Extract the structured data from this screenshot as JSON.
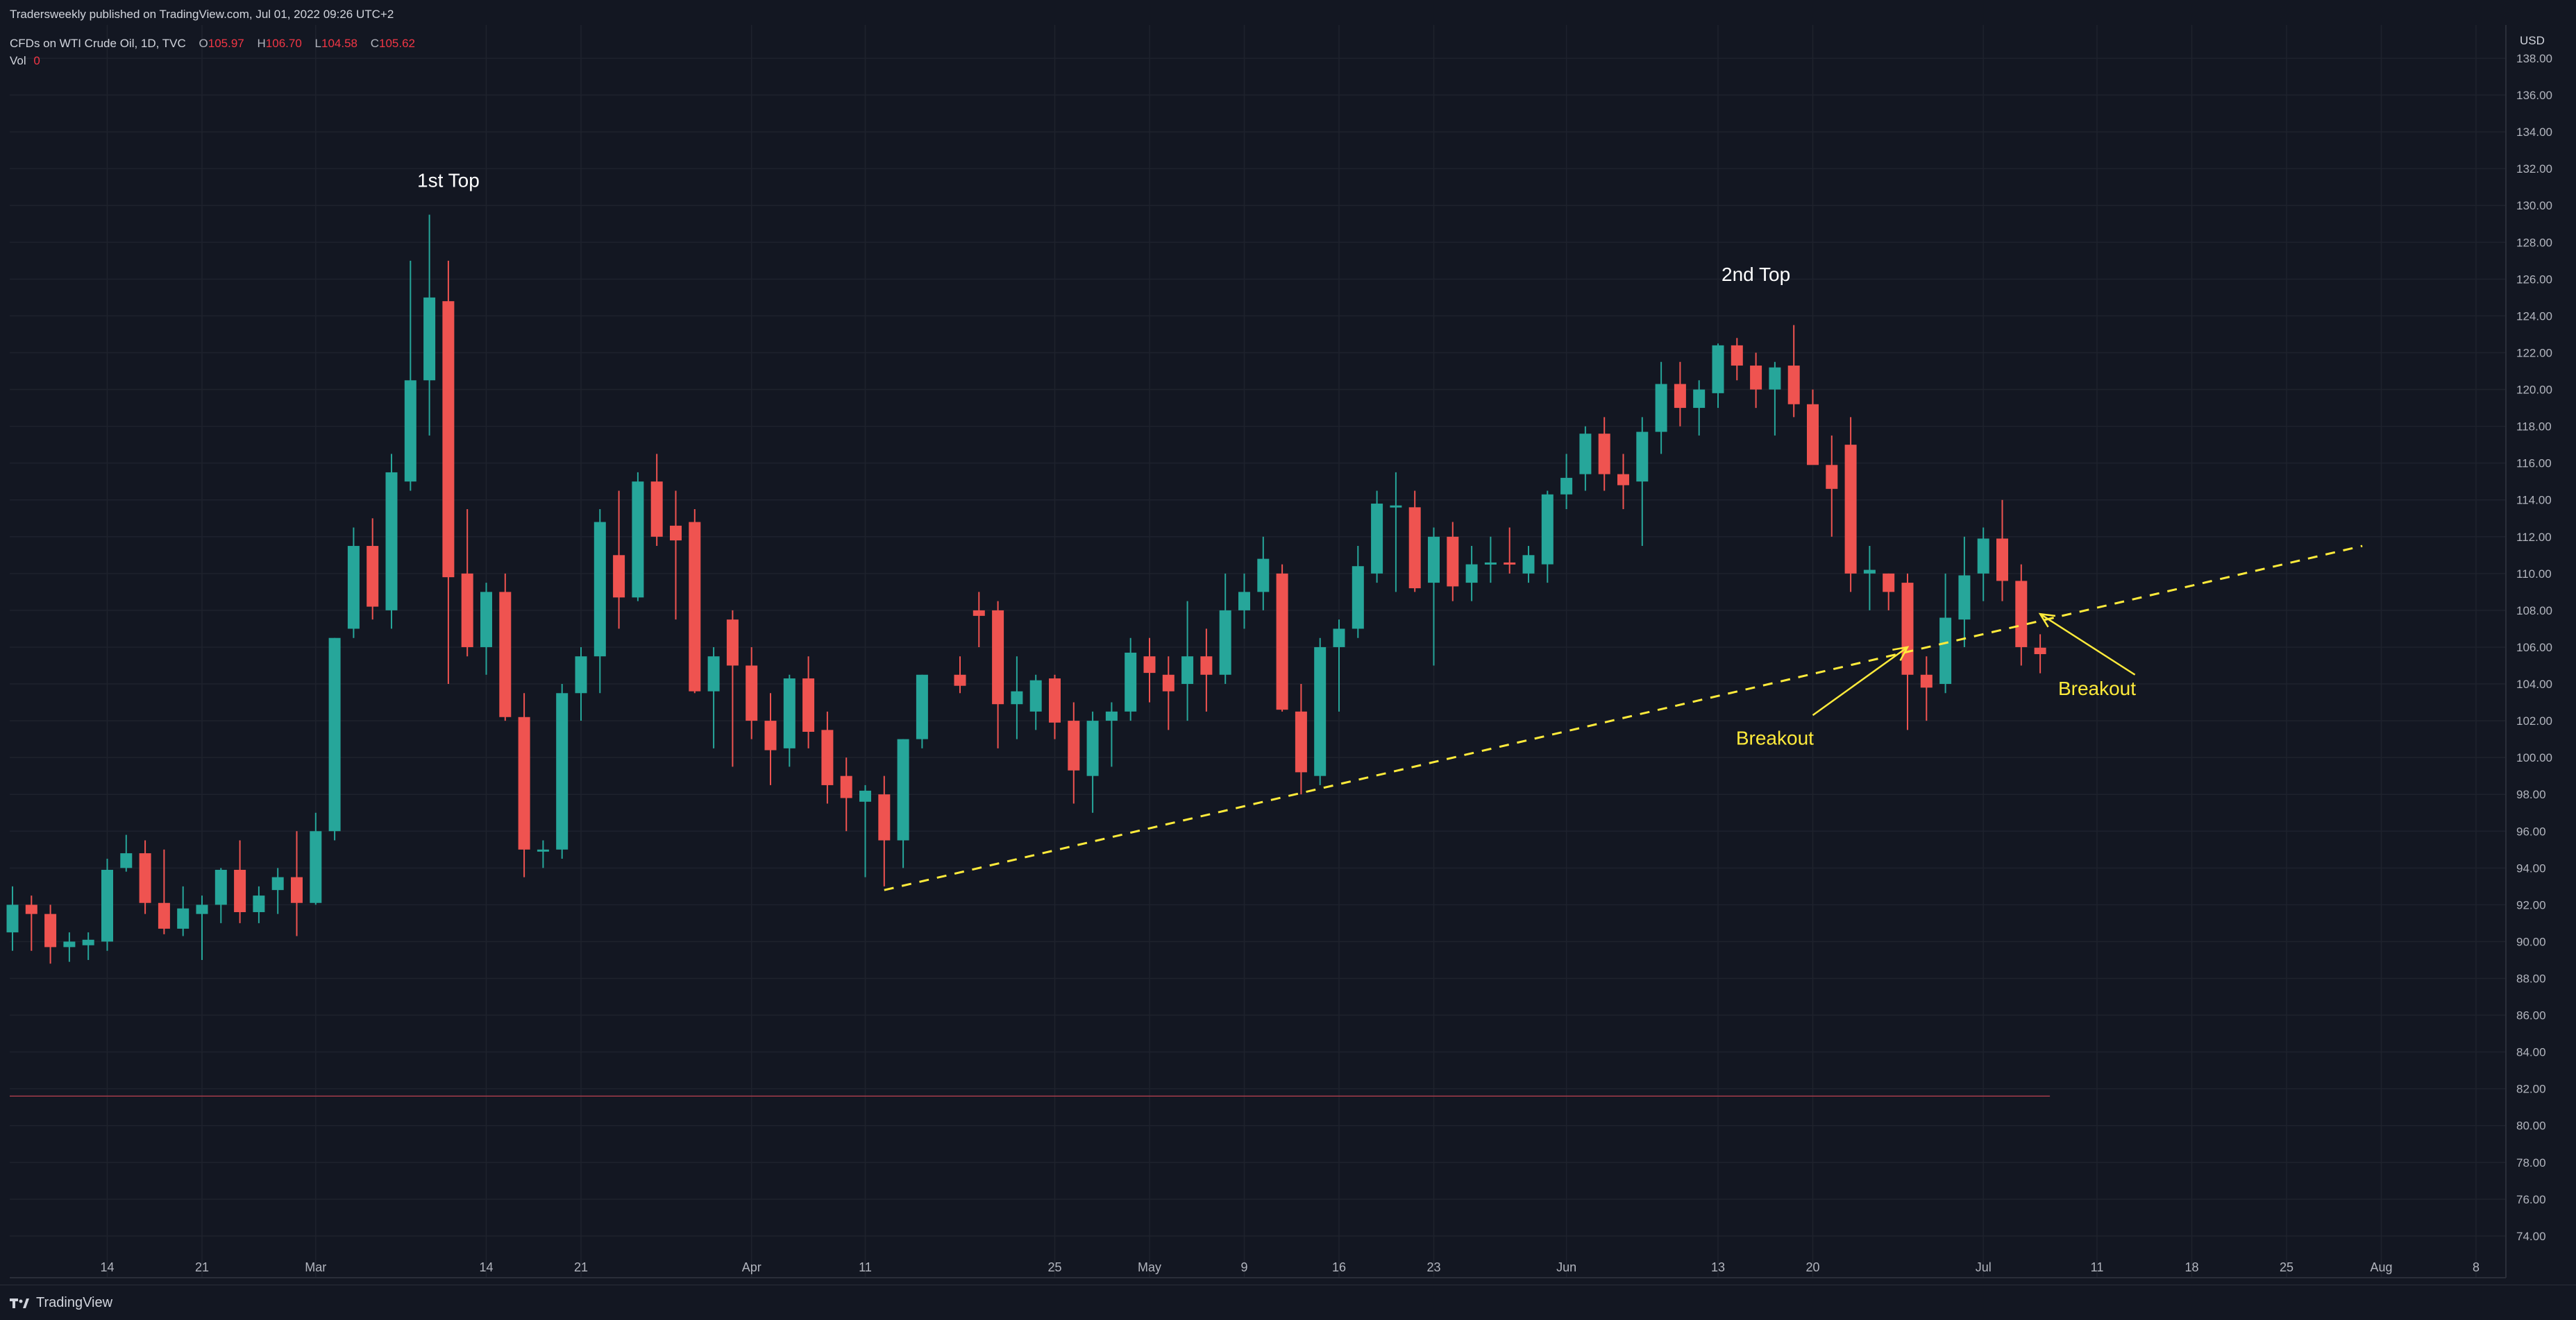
{
  "header": {
    "published": "Tradersweekly published on TradingView.com, Jul 01, 2022 09:26 UTC+2",
    "symbol": "CFDs on WTI Crude Oil, 1D, TVC",
    "ohlc": [
      {
        "k": "O",
        "v": "105.97"
      },
      {
        "k": "H",
        "v": "106.70"
      },
      {
        "k": "L",
        "v": "104.58"
      },
      {
        "k": "C",
        "v": "105.62"
      }
    ],
    "vol_label": "Vol",
    "vol_value": "0"
  },
  "footer": {
    "brand": "TradingView"
  },
  "colors": {
    "background": "#131722",
    "up": "#26a69a",
    "down": "#ef5350",
    "grid": "#1e222d",
    "axis_text": "#b2b5be",
    "trendline": "#ffeb3b",
    "annotation": "#ffeb3b"
  },
  "chart_data": {
    "type": "candlestick",
    "currency": "USD",
    "ylim": [
      73,
      139
    ],
    "y_ticks": [
      74,
      76,
      78,
      80,
      82,
      84,
      86,
      88,
      90,
      92,
      94,
      96,
      98,
      100,
      102,
      104,
      106,
      108,
      110,
      112,
      114,
      116,
      118,
      120,
      122,
      124,
      126,
      128,
      130,
      132,
      134,
      136,
      138
    ],
    "y_tick_labels": [
      "74.00",
      "76.00",
      "78.00",
      "80.00",
      "82.00",
      "84.00",
      "86.00",
      "88.00",
      "90.00",
      "92.00",
      "94.00",
      "96.00",
      "98.00",
      "100.00",
      "102.00",
      "104.00",
      "106.00",
      "108.00",
      "110.00",
      "112.00",
      "114.00",
      "116.00",
      "118.00",
      "120.00",
      "122.00",
      "124.00",
      "126.00",
      "128.00",
      "130.00",
      "132.00",
      "134.00",
      "136.00",
      "138.00"
    ],
    "x_ticks": [
      {
        "date": "2022-02-14",
        "label": "14"
      },
      {
        "date": "2022-02-21",
        "label": "21"
      },
      {
        "date": "2022-03-01",
        "label": "Mar"
      },
      {
        "date": "2022-03-14",
        "label": "14"
      },
      {
        "date": "2022-03-21",
        "label": "21"
      },
      {
        "date": "2022-04-01",
        "label": "Apr"
      },
      {
        "date": "2022-04-11",
        "label": "11"
      },
      {
        "date": "2022-04-25",
        "label": "25"
      },
      {
        "date": "2022-05-02",
        "label": "May"
      },
      {
        "date": "2022-05-09",
        "label": "9"
      },
      {
        "date": "2022-05-16",
        "label": "16"
      },
      {
        "date": "2022-05-23",
        "label": "23"
      },
      {
        "date": "2022-06-01",
        "label": "Jun"
      },
      {
        "date": "2022-06-13",
        "label": "13"
      },
      {
        "date": "2022-06-20",
        "label": "20"
      },
      {
        "date": "2022-07-01",
        "label": "Jul"
      },
      {
        "date": "2022-07-11",
        "label": "11"
      },
      {
        "date": "2022-07-18",
        "label": "18"
      },
      {
        "date": "2022-07-25",
        "label": "25"
      },
      {
        "date": "2022-08-01",
        "label": "Aug"
      },
      {
        "date": "2022-08-08",
        "label": "8"
      }
    ],
    "candles": [
      {
        "date": "2022-02-07",
        "o": 90.5,
        "h": 93.0,
        "l": 89.5,
        "c": 92.0
      },
      {
        "date": "2022-02-08",
        "o": 92.0,
        "h": 92.5,
        "l": 89.5,
        "c": 91.5
      },
      {
        "date": "2022-02-09",
        "o": 91.5,
        "h": 92.0,
        "l": 88.8,
        "c": 89.7
      },
      {
        "date": "2022-02-10",
        "o": 89.7,
        "h": 90.5,
        "l": 88.9,
        "c": 90.0
      },
      {
        "date": "2022-02-11",
        "o": 89.8,
        "h": 90.5,
        "l": 89.0,
        "c": 90.1
      },
      {
        "date": "2022-02-14",
        "o": 90.0,
        "h": 94.5,
        "l": 89.5,
        "c": 93.9
      },
      {
        "date": "2022-02-15",
        "o": 94.0,
        "h": 95.8,
        "l": 93.8,
        "c": 94.8
      },
      {
        "date": "2022-02-16",
        "o": 94.8,
        "h": 95.5,
        "l": 91.5,
        "c": 92.1
      },
      {
        "date": "2022-02-17",
        "o": 92.1,
        "h": 95.0,
        "l": 90.4,
        "c": 90.7
      },
      {
        "date": "2022-02-18",
        "o": 90.7,
        "h": 93.0,
        "l": 90.3,
        "c": 91.8
      },
      {
        "date": "2022-02-21",
        "o": 91.5,
        "h": 92.5,
        "l": 89.0,
        "c": 92.0
      },
      {
        "date": "2022-02-22",
        "o": 92.0,
        "h": 94.0,
        "l": 91.0,
        "c": 93.9
      },
      {
        "date": "2022-02-23",
        "o": 93.9,
        "h": 95.5,
        "l": 91.0,
        "c": 91.6
      },
      {
        "date": "2022-02-24",
        "o": 91.6,
        "h": 93.0,
        "l": 91.0,
        "c": 92.5
      },
      {
        "date": "2022-02-25",
        "o": 92.8,
        "h": 94.0,
        "l": 91.5,
        "c": 93.5
      },
      {
        "date": "2022-02-28",
        "o": 93.5,
        "h": 96.0,
        "l": 90.3,
        "c": 92.1
      },
      {
        "date": "2022-03-01",
        "o": 92.1,
        "h": 97.0,
        "l": 92.0,
        "c": 96.0
      },
      {
        "date": "2022-03-02",
        "o": 96.0,
        "h": 106.5,
        "l": 95.5,
        "c": 106.5
      },
      {
        "date": "2022-03-03",
        "o": 107.0,
        "h": 112.5,
        "l": 106.5,
        "c": 111.5
      },
      {
        "date": "2022-03-04",
        "o": 111.5,
        "h": 113.0,
        "l": 107.5,
        "c": 108.2
      },
      {
        "date": "2022-03-07",
        "o": 108.0,
        "h": 116.5,
        "l": 107.0,
        "c": 115.5
      },
      {
        "date": "2022-03-08",
        "o": 115.0,
        "h": 127.0,
        "l": 114.5,
        "c": 120.5
      },
      {
        "date": "2022-03-09",
        "o": 120.5,
        "h": 129.5,
        "l": 117.5,
        "c": 125.0
      },
      {
        "date": "2022-03-10",
        "o": 124.8,
        "h": 127.0,
        "l": 104.0,
        "c": 109.8
      },
      {
        "date": "2022-03-11",
        "o": 110.0,
        "h": 113.5,
        "l": 105.5,
        "c": 106.0
      },
      {
        "date": "2022-03-14",
        "o": 106.0,
        "h": 109.5,
        "l": 104.5,
        "c": 109.0
      },
      {
        "date": "2022-03-15",
        "o": 109.0,
        "h": 110.0,
        "l": 102.0,
        "c": 102.2
      },
      {
        "date": "2022-03-16",
        "o": 102.2,
        "h": 103.5,
        "l": 93.5,
        "c": 95.0
      },
      {
        "date": "2022-03-17",
        "o": 95.0,
        "h": 95.5,
        "l": 94.0,
        "c": 95.0
      },
      {
        "date": "2022-03-18",
        "o": 95.0,
        "h": 104.0,
        "l": 94.5,
        "c": 103.5
      },
      {
        "date": "2022-03-21",
        "o": 103.5,
        "h": 106.0,
        "l": 102.0,
        "c": 105.5
      },
      {
        "date": "2022-03-22",
        "o": 105.5,
        "h": 113.5,
        "l": 103.5,
        "c": 112.8
      },
      {
        "date": "2022-03-23",
        "o": 111.0,
        "h": 114.5,
        "l": 107.0,
        "c": 108.7
      },
      {
        "date": "2022-03-24",
        "o": 108.7,
        "h": 115.5,
        "l": 108.5,
        "c": 115.0
      },
      {
        "date": "2022-03-25",
        "o": 115.0,
        "h": 116.5,
        "l": 111.5,
        "c": 112.0
      },
      {
        "date": "2022-03-28",
        "o": 112.6,
        "h": 114.5,
        "l": 107.5,
        "c": 111.8
      },
      {
        "date": "2022-03-29",
        "o": 112.8,
        "h": 113.5,
        "l": 103.5,
        "c": 103.6
      },
      {
        "date": "2022-03-30",
        "o": 103.6,
        "h": 106.0,
        "l": 100.5,
        "c": 105.5
      },
      {
        "date": "2022-03-31",
        "o": 107.5,
        "h": 108.0,
        "l": 99.5,
        "c": 105.0
      },
      {
        "date": "2022-04-01",
        "o": 105.0,
        "h": 106.0,
        "l": 101.0,
        "c": 102.0
      },
      {
        "date": "2022-04-04",
        "o": 102.0,
        "h": 103.5,
        "l": 98.5,
        "c": 100.4
      },
      {
        "date": "2022-04-05",
        "o": 100.5,
        "h": 104.5,
        "l": 99.5,
        "c": 104.3
      },
      {
        "date": "2022-04-06",
        "o": 104.3,
        "h": 105.5,
        "l": 100.5,
        "c": 101.4
      },
      {
        "date": "2022-04-07",
        "o": 101.5,
        "h": 102.5,
        "l": 97.5,
        "c": 98.5
      },
      {
        "date": "2022-04-08",
        "o": 99.0,
        "h": 100.0,
        "l": 96.0,
        "c": 97.8
      },
      {
        "date": "2022-04-11",
        "o": 97.6,
        "h": 98.5,
        "l": 93.5,
        "c": 98.2
      },
      {
        "date": "2022-04-12",
        "o": 98.0,
        "h": 99.0,
        "l": 93.0,
        "c": 95.5
      },
      {
        "date": "2022-04-13",
        "o": 95.5,
        "h": 101.0,
        "l": 94.0,
        "c": 101.0
      },
      {
        "date": "2022-04-14",
        "o": 101.0,
        "h": 104.5,
        "l": 100.5,
        "c": 104.5
      },
      {
        "date": "2022-04-18",
        "o": 104.5,
        "h": 105.5,
        "l": 103.5,
        "c": 103.9
      },
      {
        "date": "2022-04-19",
        "o": 108.0,
        "h": 109.0,
        "l": 106.0,
        "c": 107.7
      },
      {
        "date": "2022-04-20",
        "o": 108.0,
        "h": 108.5,
        "l": 100.5,
        "c": 102.9
      },
      {
        "date": "2022-04-21",
        "o": 102.9,
        "h": 105.5,
        "l": 101.0,
        "c": 103.6
      },
      {
        "date": "2022-04-22",
        "o": 102.5,
        "h": 104.5,
        "l": 101.5,
        "c": 104.2
      },
      {
        "date": "2022-04-25",
        "o": 104.3,
        "h": 104.5,
        "l": 101.0,
        "c": 101.9
      },
      {
        "date": "2022-04-26",
        "o": 102.0,
        "h": 103.0,
        "l": 97.5,
        "c": 99.3
      },
      {
        "date": "2022-04-27",
        "o": 99.0,
        "h": 102.5,
        "l": 97.0,
        "c": 102.0
      },
      {
        "date": "2022-04-28",
        "o": 102.0,
        "h": 103.0,
        "l": 99.5,
        "c": 102.5
      },
      {
        "date": "2022-04-29",
        "o": 102.5,
        "h": 106.5,
        "l": 102.0,
        "c": 105.7
      },
      {
        "date": "2022-05-02",
        "o": 105.5,
        "h": 106.5,
        "l": 103.0,
        "c": 104.6
      },
      {
        "date": "2022-05-03",
        "o": 104.5,
        "h": 105.5,
        "l": 101.5,
        "c": 103.6
      },
      {
        "date": "2022-05-04",
        "o": 104.0,
        "h": 108.5,
        "l": 102.0,
        "c": 105.5
      },
      {
        "date": "2022-05-05",
        "o": 105.5,
        "h": 107.0,
        "l": 102.5,
        "c": 104.5
      },
      {
        "date": "2022-05-06",
        "o": 104.5,
        "h": 110.0,
        "l": 104.0,
        "c": 108.0
      },
      {
        "date": "2022-05-09",
        "o": 108.0,
        "h": 110.0,
        "l": 107.0,
        "c": 109.0
      },
      {
        "date": "2022-05-10",
        "o": 109.0,
        "h": 112.0,
        "l": 108.0,
        "c": 110.8
      },
      {
        "date": "2022-05-11",
        "o": 110.0,
        "h": 110.5,
        "l": 102.5,
        "c": 102.6
      },
      {
        "date": "2022-05-12",
        "o": 102.5,
        "h": 104.0,
        "l": 98.0,
        "c": 99.2
      },
      {
        "date": "2022-05-13",
        "o": 99.0,
        "h": 106.5,
        "l": 98.5,
        "c": 106.0
      },
      {
        "date": "2022-05-16",
        "o": 106.0,
        "h": 107.5,
        "l": 102.5,
        "c": 107.0
      },
      {
        "date": "2022-05-17",
        "o": 107.0,
        "h": 111.5,
        "l": 106.5,
        "c": 110.4
      },
      {
        "date": "2022-05-18",
        "o": 110.0,
        "h": 114.5,
        "l": 109.5,
        "c": 113.8
      },
      {
        "date": "2022-05-19",
        "o": 113.6,
        "h": 115.5,
        "l": 109.0,
        "c": 113.7
      },
      {
        "date": "2022-05-20",
        "o": 113.6,
        "h": 114.5,
        "l": 109.0,
        "c": 109.2
      },
      {
        "date": "2022-05-23",
        "o": 109.5,
        "h": 112.5,
        "l": 105.0,
        "c": 112.0
      },
      {
        "date": "2022-05-24",
        "o": 112.0,
        "h": 112.8,
        "l": 108.5,
        "c": 109.3
      },
      {
        "date": "2022-05-25",
        "o": 109.5,
        "h": 111.5,
        "l": 108.5,
        "c": 110.5
      },
      {
        "date": "2022-05-26",
        "o": 110.5,
        "h": 112.0,
        "l": 109.5,
        "c": 110.6
      },
      {
        "date": "2022-05-27",
        "o": 110.6,
        "h": 112.5,
        "l": 110.0,
        "c": 110.5
      },
      {
        "date": "2022-05-30",
        "o": 110.0,
        "h": 111.5,
        "l": 109.5,
        "c": 111.0
      },
      {
        "date": "2022-05-31",
        "o": 110.5,
        "h": 114.5,
        "l": 109.5,
        "c": 114.3
      },
      {
        "date": "2022-06-01",
        "o": 114.3,
        "h": 116.5,
        "l": 113.5,
        "c": 115.2
      },
      {
        "date": "2022-06-02",
        "o": 115.4,
        "h": 118.0,
        "l": 114.5,
        "c": 117.6
      },
      {
        "date": "2022-06-03",
        "o": 117.6,
        "h": 118.5,
        "l": 114.5,
        "c": 115.4
      },
      {
        "date": "2022-06-06",
        "o": 115.4,
        "h": 116.5,
        "l": 113.5,
        "c": 114.8
      },
      {
        "date": "2022-06-07",
        "o": 115.0,
        "h": 118.5,
        "l": 111.5,
        "c": 117.7
      },
      {
        "date": "2022-06-08",
        "o": 117.7,
        "h": 121.5,
        "l": 116.5,
        "c": 120.3
      },
      {
        "date": "2022-06-09",
        "o": 120.3,
        "h": 121.5,
        "l": 118.0,
        "c": 119.0
      },
      {
        "date": "2022-06-10",
        "o": 119.0,
        "h": 120.5,
        "l": 117.5,
        "c": 120.0
      },
      {
        "date": "2022-06-13",
        "o": 119.8,
        "h": 122.5,
        "l": 119.0,
        "c": 122.4
      },
      {
        "date": "2022-06-14",
        "o": 122.4,
        "h": 122.8,
        "l": 120.5,
        "c": 121.3
      },
      {
        "date": "2022-06-15",
        "o": 121.3,
        "h": 122.0,
        "l": 119.0,
        "c": 120.0
      },
      {
        "date": "2022-06-16",
        "o": 120.0,
        "h": 121.5,
        "l": 117.5,
        "c": 121.2
      },
      {
        "date": "2022-06-17",
        "o": 121.3,
        "h": 123.5,
        "l": 118.5,
        "c": 119.2
      },
      {
        "date": "2022-06-20",
        "o": 119.2,
        "h": 120.0,
        "l": 116.5,
        "c": 115.9
      },
      {
        "date": "2022-06-21",
        "o": 115.9,
        "h": 117.5,
        "l": 112.0,
        "c": 114.6
      },
      {
        "date": "2022-06-22",
        "o": 117.0,
        "h": 118.5,
        "l": 109.0,
        "c": 110.0
      },
      {
        "date": "2022-06-23",
        "o": 110.0,
        "h": 111.5,
        "l": 108.0,
        "c": 110.2
      },
      {
        "date": "2022-06-24",
        "o": 110.0,
        "h": 110.0,
        "l": 108.0,
        "c": 109.0
      },
      {
        "date": "2022-06-27",
        "o": 109.5,
        "h": 110.0,
        "l": 101.5,
        "c": 104.5
      },
      {
        "date": "2022-06-28",
        "o": 104.5,
        "h": 105.5,
        "l": 102.0,
        "c": 103.8
      },
      {
        "date": "2022-06-29",
        "o": 104.0,
        "h": 110.0,
        "l": 103.5,
        "c": 107.6
      },
      {
        "date": "2022-06-30",
        "o": 107.5,
        "h": 112.0,
        "l": 106.0,
        "c": 109.9
      },
      {
        "date": "2022-07-01",
        "o": 110.0,
        "h": 112.5,
        "l": 108.5,
        "c": 111.9
      },
      {
        "date": "2022-07-04",
        "o": 111.9,
        "h": 114.0,
        "l": 108.5,
        "c": 109.6
      },
      {
        "date": "2022-07-05",
        "o": 109.6,
        "h": 110.5,
        "l": 105.0,
        "c": 106.0
      },
      {
        "date": "2022-07-06",
        "o": 105.97,
        "h": 106.7,
        "l": 104.58,
        "c": 105.62
      }
    ],
    "trendline": {
      "x1": "2022-04-12",
      "y1": 92.8,
      "x2": "2022-07-29",
      "y2": 111.5
    },
    "reference_line": {
      "y": 81.6,
      "x_end": "2022-07-06"
    },
    "annotations": [
      {
        "text": "1st Top",
        "x": "2022-03-10",
        "y": 131.0
      },
      {
        "text": "2nd Top",
        "x": "2022-06-15",
        "y": 125.9
      },
      {
        "text": "Breakout",
        "x": "2022-06-16",
        "y": 100.7
      },
      {
        "text": "Breakout",
        "x": "2022-07-11",
        "y": 103.4
      }
    ],
    "arrows": [
      {
        "from_x": "2022-06-20",
        "from_y": 102.3,
        "to_x": "2022-06-27",
        "to_y": 106.0
      },
      {
        "from_x": "2022-07-13",
        "from_y": 104.5,
        "to_x": "2022-07-06",
        "to_y": 107.8
      }
    ]
  }
}
